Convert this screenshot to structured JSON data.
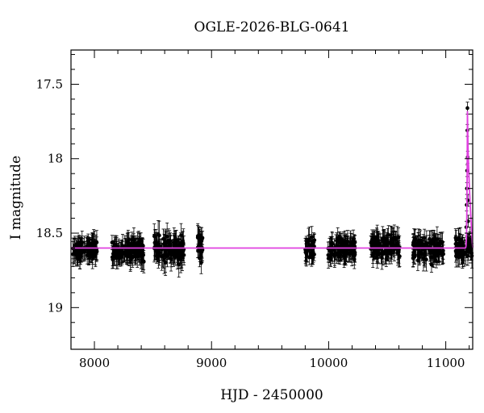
{
  "chart_data": {
    "type": "scatter",
    "title": "OGLE-2026-BLG-0641",
    "xlabel": "HJD - 2450000",
    "ylabel": "I magnitude",
    "xlim": [
      7800,
      11230
    ],
    "ylim": [
      19.28,
      17.27
    ],
    "y_inverted": true,
    "x_ticks": [
      8000,
      9000,
      10000,
      11000
    ],
    "x_ticklabels": [
      "8000",
      "9000",
      "10000",
      "11000"
    ],
    "y_ticks": [
      17.5,
      18,
      18.5,
      19
    ],
    "y_ticklabels": [
      "17.5",
      "18",
      "18.5",
      "19"
    ],
    "grid": false,
    "colors": {
      "data": "#000000",
      "model": "#e040e0"
    },
    "seasons": [
      {
        "start": 7815,
        "end": 8025,
        "base_mag": 18.61,
        "scatter": 0.04,
        "err": 0.06
      },
      {
        "start": 8150,
        "end": 8430,
        "base_mag": 18.62,
        "scatter": 0.05,
        "err": 0.06
      },
      {
        "start": 8510,
        "end": 8765,
        "base_mag": 18.61,
        "scatter": 0.06,
        "err": 0.07
      },
      {
        "start": 8880,
        "end": 8930,
        "base_mag": 18.58,
        "scatter": 0.07,
        "err": 0.06
      },
      {
        "start": 9800,
        "end": 9880,
        "base_mag": 18.6,
        "scatter": 0.05,
        "err": 0.06
      },
      {
        "start": 9990,
        "end": 10230,
        "base_mag": 18.6,
        "scatter": 0.05,
        "err": 0.06
      },
      {
        "start": 10360,
        "end": 10610,
        "base_mag": 18.59,
        "scatter": 0.05,
        "err": 0.06
      },
      {
        "start": 10720,
        "end": 10980,
        "base_mag": 18.61,
        "scatter": 0.05,
        "err": 0.06
      },
      {
        "start": 11080,
        "end": 11225,
        "base_mag": 18.6,
        "scatter": 0.05,
        "err": 0.06
      }
    ],
    "event_points": [
      {
        "x": 11175,
        "y": 18.46,
        "err": 0.04
      },
      {
        "x": 11178,
        "y": 18.31,
        "err": 0.04
      },
      {
        "x": 11180,
        "y": 18.2,
        "err": 0.04
      },
      {
        "x": 11182,
        "y": 18.08,
        "err": 0.04
      },
      {
        "x": 11184,
        "y": 17.81,
        "err": 0.04
      },
      {
        "x": 11185,
        "y": 17.66,
        "err": 0.04
      },
      {
        "x": 11187,
        "y": 17.99,
        "err": 0.04
      },
      {
        "x": 11189,
        "y": 18.28,
        "err": 0.04
      },
      {
        "x": 11191,
        "y": 18.42,
        "err": 0.04
      }
    ],
    "model": {
      "baseline": 18.6,
      "peak_x": 11185,
      "peak_mag": 17.68,
      "rise_start": 11160
    }
  }
}
